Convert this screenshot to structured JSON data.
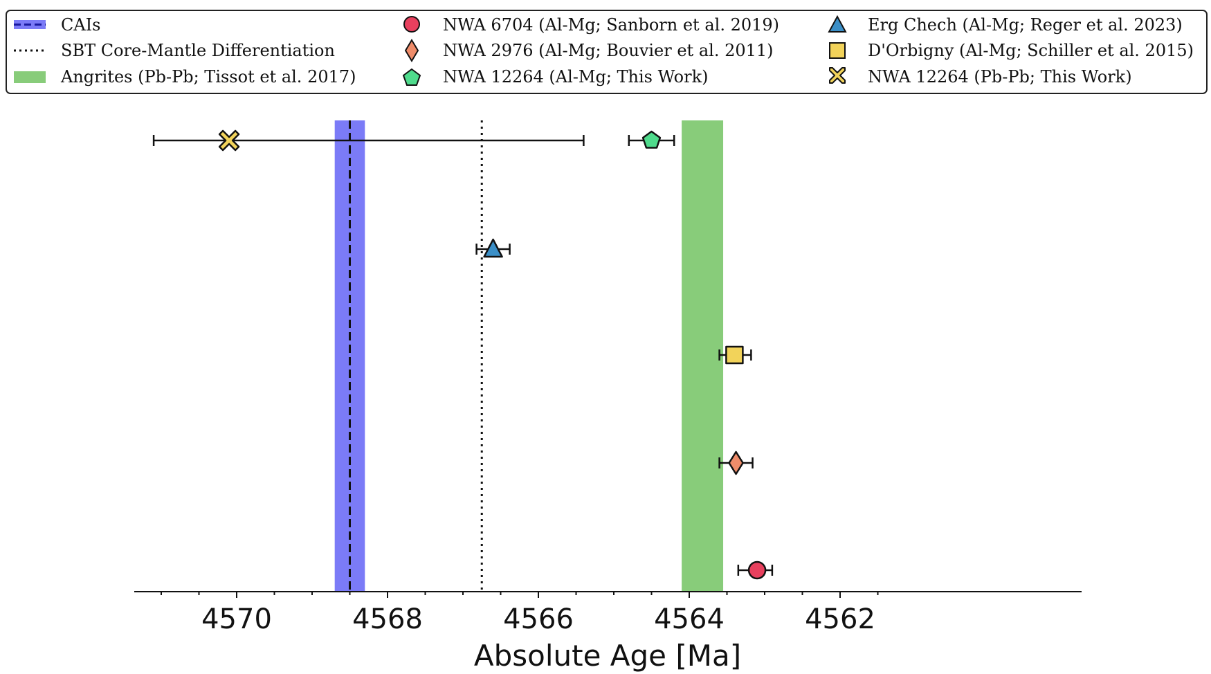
{
  "chart_data": {
    "type": "scatter",
    "xlabel": "Absolute Age [Ma]",
    "xlim": [
      4571.1,
      4561.1
    ],
    "x_axis_reversed": true,
    "xticks": [
      4570,
      4568,
      4566,
      4564,
      4562
    ],
    "tick_labels": [
      "4570",
      "4568",
      "4566",
      "4564",
      "4562"
    ],
    "grid": false,
    "legend_position": "top",
    "legend": [
      {
        "label": "CAIs",
        "kind": "dashed-line-band",
        "color": "#7b7bf7"
      },
      {
        "label": "SBT Core-Mantle Differentiation",
        "kind": "dotted-line"
      },
      {
        "label": "Angrites (Pb-Pb; Tissot et al. 2017)",
        "kind": "band",
        "color": "#88cc7a"
      },
      {
        "label": "NWA 6704 (Al-Mg; Sanborn et al. 2019)",
        "kind": "circle",
        "color": "#e8405e"
      },
      {
        "label": "NWA 2976 (Al-Mg; Bouvier et al. 2011)",
        "kind": "diamond",
        "color": "#ef8c6a"
      },
      {
        "label": "NWA 12264 (Al-Mg; This Work)",
        "kind": "pentagon",
        "color": "#4fdb8c"
      },
      {
        "label": "Erg Chech (Al-Mg; Reger et al. 2023)",
        "kind": "triangle",
        "color": "#3b8fc7"
      },
      {
        "label": "D'Orbigny (Al-Mg; Schiller et al. 2015)",
        "kind": "square",
        "color": "#f2d35a"
      },
      {
        "label": "NWA 12264 (Pb-Pb; This Work)",
        "kind": "x",
        "color": "#f2d35a"
      }
    ],
    "bands": [
      {
        "name": "CAIs",
        "x": [
          4568.7,
          4568.3
        ],
        "center": 4568.5,
        "color": "#7b7bf7"
      },
      {
        "name": "Angrites (Pb-Pb; Tissot et al. 2017)",
        "x": [
          4564.1,
          4563.55
        ],
        "color": "#88cc7a"
      }
    ],
    "vlines": [
      {
        "name": "SBT Core-Mantle Differentiation",
        "x": 4566.75,
        "style": "dotted"
      }
    ],
    "points": [
      {
        "name": "NWA 12264 (Pb-Pb; This Work)",
        "x": 4570.1,
        "err_low": 4571.1,
        "err_high": 4565.4,
        "row": 1,
        "marker": "x",
        "color": "#f2d35a"
      },
      {
        "name": "NWA 12264 (Al-Mg; This Work)",
        "x": 4564.5,
        "err_low": 4564.8,
        "err_high": 4564.2,
        "row": 1,
        "marker": "pentagon",
        "color": "#4fdb8c"
      },
      {
        "name": "Erg Chech (Al-Mg; Reger et al. 2023)",
        "x": 4566.6,
        "err_low": 4566.82,
        "err_high": 4566.38,
        "row": 2,
        "marker": "triangle",
        "color": "#3b8fc7"
      },
      {
        "name": "D'Orbigny (Al-Mg; Schiller et al. 2015)",
        "x": 4563.4,
        "err_low": 4563.6,
        "err_high": 4563.18,
        "row": 3,
        "marker": "square",
        "color": "#f2d35a"
      },
      {
        "name": "NWA 2976 (Al-Mg; Bouvier et al. 2011)",
        "x": 4563.38,
        "err_low": 4563.6,
        "err_high": 4563.16,
        "row": 4,
        "marker": "diamond",
        "color": "#ef8c6a"
      },
      {
        "name": "NWA 6704 (Al-Mg; Sanborn et al. 2019)",
        "x": 4563.1,
        "err_low": 4563.35,
        "err_high": 4562.9,
        "row": 5,
        "marker": "circle",
        "color": "#e8405e"
      }
    ]
  }
}
